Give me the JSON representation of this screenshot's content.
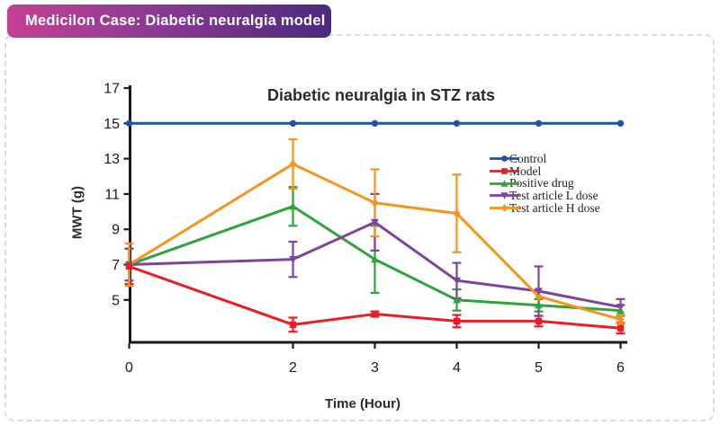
{
  "badge": {
    "label": "Medicilon Case: Diabetic neuralgia model",
    "gradient_left": "#c64095",
    "gradient_right": "#4b2a7e"
  },
  "chart_data": {
    "type": "line",
    "title": "Diabetic neuralgia in STZ rats",
    "xlabel": "Time (Hour)",
    "ylabel": "MWT (g)",
    "x": [
      0,
      2,
      3,
      4,
      5,
      6
    ],
    "x_ticks": [
      0,
      2,
      3,
      4,
      5,
      6
    ],
    "y_ticks": [
      5,
      7,
      9,
      11,
      13,
      15,
      17
    ],
    "xlim": [
      0,
      6
    ],
    "ylim": [
      2.6,
      17
    ],
    "grid": false,
    "error_bars": true,
    "legend_position": "right",
    "axis_color": "#1a1a1a",
    "series": [
      {
        "name": "Control",
        "color": "#2151a0",
        "marker": "circle",
        "values": [
          15,
          15,
          15,
          15,
          15,
          15
        ],
        "errors": [
          0,
          0,
          0,
          0,
          0,
          0
        ]
      },
      {
        "name": "Model",
        "color": "#ed1c24",
        "marker": "square",
        "values": [
          6.9,
          3.6,
          4.2,
          3.8,
          3.8,
          3.4
        ],
        "errors": [
          1.0,
          0.4,
          0.15,
          0.35,
          0.3,
          0.3
        ]
      },
      {
        "name": "Positive drug",
        "color": "#2fa33c",
        "marker": "triangle-up",
        "values": [
          7.0,
          10.3,
          7.3,
          5.0,
          4.7,
          4.4
        ],
        "errors": [
          0.9,
          1.1,
          1.9,
          0.6,
          0.35,
          0.3
        ]
      },
      {
        "name": "Test article L dose",
        "color": "#7d449c",
        "marker": "triangle-down",
        "values": [
          7.0,
          7.3,
          9.4,
          6.1,
          5.5,
          4.6
        ],
        "errors": [
          0.9,
          1.0,
          1.6,
          1.0,
          1.4,
          0.45
        ]
      },
      {
        "name": "Test article H dose",
        "color": "#f7941d",
        "marker": "diamond",
        "values": [
          7.0,
          12.7,
          10.5,
          9.9,
          5.2,
          3.9
        ],
        "errors": [
          1.2,
          1.4,
          1.9,
          2.2,
          0,
          0.25
        ]
      }
    ]
  }
}
